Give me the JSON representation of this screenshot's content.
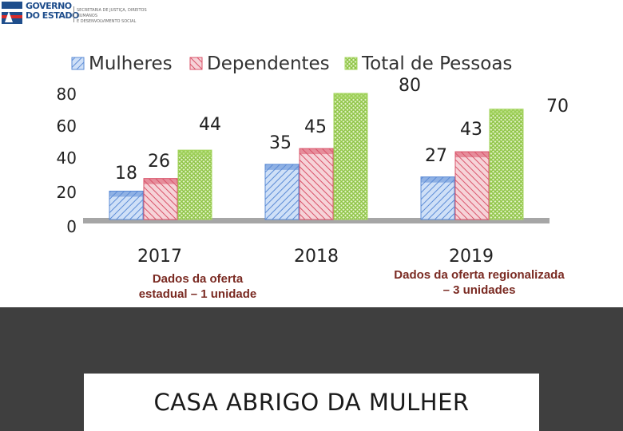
{
  "header": {
    "logo_line1": "GOVERNO",
    "logo_line2": "DO ESTADO",
    "logo_sub1": "SECRETARIA DE JUSTIÇA, DIREITOS HUMANOS",
    "logo_sub2": "E DESENVOLVIMENTO SOCIAL"
  },
  "notes": {
    "left": [
      "Dados da oferta",
      "estadual – 1 unidade"
    ],
    "right": [
      "Dados da oferta regionalizada",
      "– 3 unidades"
    ]
  },
  "footer": {
    "title": "CASA ABRIGO DA MULHER"
  },
  "colors": {
    "mulheres": "#5b8bd6",
    "dependentes": "#d9536a",
    "total": "#a4d65e",
    "bottom_band": "#3f3f3f",
    "note_text": "#7a2a22"
  },
  "chart_data": {
    "type": "bar",
    "categories": [
      "2017",
      "2018",
      "2019"
    ],
    "series": [
      {
        "name": "Mulheres",
        "values": [
          18,
          35,
          27
        ]
      },
      {
        "name": "Dependentes",
        "values": [
          26,
          45,
          43
        ]
      },
      {
        "name": "Total de Pessoas",
        "values": [
          44,
          80,
          70
        ]
      }
    ],
    "yticks": [
      "0",
      "20",
      "40",
      "60",
      "80"
    ],
    "ylim": [
      0,
      80
    ],
    "legend": "top",
    "grid": false,
    "data_labels": true
  }
}
